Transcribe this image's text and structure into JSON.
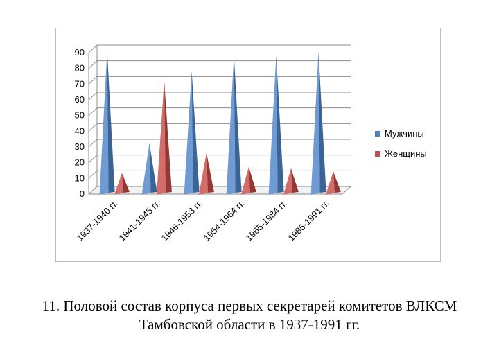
{
  "chart_data": {
    "type": "bar",
    "style": "3d-pyramid",
    "categories": [
      "1937-1940  гг.",
      "1941-1945  гг.",
      "1946-1953  гг.",
      "1954-1964  гг.",
      "1965-1984  гг.",
      "1985-1991  гг."
    ],
    "series": [
      {
        "name": "Мужчины",
        "color": "#4f81bd",
        "values": [
          89,
          30,
          76,
          86,
          86,
          88
        ]
      },
      {
        "name": "Женщины",
        "color": "#c0504d",
        "values": [
          11,
          70,
          24,
          15,
          14,
          12
        ]
      }
    ],
    "ylim": [
      0,
      90
    ],
    "yticks": [
      "0",
      "10",
      "20",
      "30",
      "40",
      "50",
      "60",
      "70",
      "80",
      "90"
    ],
    "grid": true,
    "legend": "right",
    "xlabel": "",
    "ylabel": ""
  },
  "caption": {
    "line1": "11. Половой состав корпуса первых секретарей комитетов ВЛКСМ",
    "line2": "Тамбовской области в 1937-1991 гг."
  }
}
